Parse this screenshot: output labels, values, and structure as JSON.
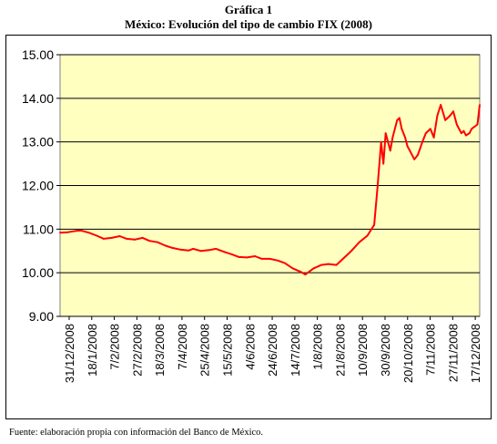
{
  "title": "Gráfica 1",
  "subtitle": "México: Evolución del tipo de cambio FIX (2008)",
  "source": "Fuente: elaboración propia con información del Banco de México.",
  "colors": {
    "plot_bg": "#FFFFC0",
    "line": "#FF0000",
    "grid": "#000000"
  },
  "chart_data": {
    "type": "line",
    "title": "México: Evolución del tipo de cambio FIX (2008)",
    "xlabel": "",
    "ylabel": "",
    "ylim": [
      9.0,
      15.0
    ],
    "y_ticks": [
      "9.00",
      "10.00",
      "11.00",
      "12.00",
      "13.00",
      "14.00",
      "15.00"
    ],
    "x_ticks": [
      "31/12/2008",
      "18/1/2008",
      "7/2/2008",
      "27/2/2008",
      "18/3/2008",
      "7/4/2008",
      "25/4/2008",
      "15/5/2008",
      "4/6/2008",
      "24/6/2008",
      "14/7/2008",
      "1/8/2008",
      "21/8/2008",
      "10/9/2008",
      "30/9/2008",
      "20/10/2008",
      "7/11/2008",
      "27/11/2008",
      "17/12/2008"
    ],
    "grid": true,
    "legend": "none",
    "series": [
      {
        "x": [
          "2007-12-31",
          "2008-01-07",
          "2008-01-14",
          "2008-01-18",
          "2008-01-25",
          "2008-02-01",
          "2008-02-07",
          "2008-02-14",
          "2008-02-21",
          "2008-02-27",
          "2008-03-05",
          "2008-03-12",
          "2008-03-18",
          "2008-03-25",
          "2008-04-01",
          "2008-04-07",
          "2008-04-14",
          "2008-04-21",
          "2008-04-25",
          "2008-05-02",
          "2008-05-09",
          "2008-05-15",
          "2008-05-22",
          "2008-05-29",
          "2008-06-04",
          "2008-06-11",
          "2008-06-18",
          "2008-06-24",
          "2008-07-01",
          "2008-07-08",
          "2008-07-14",
          "2008-07-21",
          "2008-07-28",
          "2008-08-01",
          "2008-08-08",
          "2008-08-15",
          "2008-08-21",
          "2008-08-28",
          "2008-09-04",
          "2008-09-10",
          "2008-09-17",
          "2008-09-24",
          "2008-09-30",
          "2008-10-03",
          "2008-10-06",
          "2008-10-08",
          "2008-10-10",
          "2008-10-14",
          "2008-10-16",
          "2008-10-20",
          "2008-10-22",
          "2008-10-24",
          "2008-10-27",
          "2008-10-29",
          "2008-10-31",
          "2008-11-04",
          "2008-11-07",
          "2008-11-11",
          "2008-11-14",
          "2008-11-18",
          "2008-11-21",
          "2008-11-24",
          "2008-11-27",
          "2008-12-01",
          "2008-12-05",
          "2008-12-08",
          "2008-12-11",
          "2008-12-15",
          "2008-12-17",
          "2008-12-19",
          "2008-12-22",
          "2008-12-24",
          "2008-12-29",
          "2008-12-31"
        ],
        "values": [
          10.92,
          10.93,
          10.96,
          10.97,
          10.92,
          10.85,
          10.78,
          10.8,
          10.84,
          10.78,
          10.76,
          10.8,
          10.73,
          10.7,
          10.62,
          10.57,
          10.53,
          10.51,
          10.55,
          10.5,
          10.52,
          10.55,
          10.48,
          10.42,
          10.36,
          10.35,
          10.38,
          10.32,
          10.32,
          10.28,
          10.22,
          10.1,
          10.02,
          9.96,
          10.1,
          10.18,
          10.2,
          10.18,
          10.35,
          10.5,
          10.7,
          10.85,
          11.1,
          12.0,
          13.0,
          12.5,
          13.2,
          12.8,
          13.1,
          13.5,
          13.55,
          13.3,
          13.1,
          12.9,
          12.8,
          12.6,
          12.7,
          13.0,
          13.2,
          13.3,
          13.1,
          13.6,
          13.85,
          13.5,
          13.6,
          13.7,
          13.4,
          13.2,
          13.25,
          13.15,
          13.2,
          13.3,
          13.4,
          13.85
        ]
      }
    ]
  }
}
